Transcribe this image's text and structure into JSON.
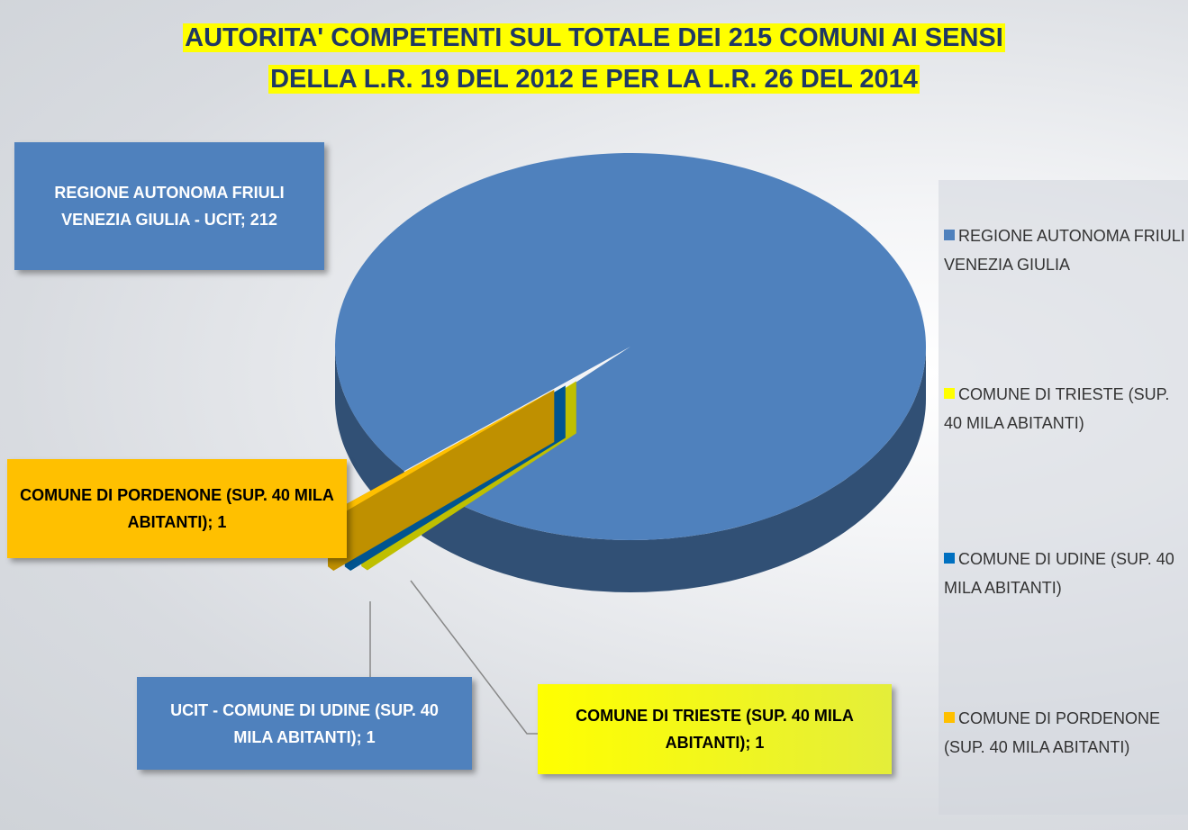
{
  "chart_data": {
    "type": "pie",
    "title": [
      "AUTORITA' COMPETENTI SUL TOTALE DEI 215 COMUNI AI SENSI",
      "DELLA L.R. 19 DEL 2012 E PER LA L.R. 26 DEL 2014"
    ],
    "categories": [
      "REGIONE AUTONOMA FRIULI VENEZIA GIULIA",
      "COMUNE DI TRIESTE (SUP. 40 MILA ABITANTI)",
      "COMUNE DI UDINE (SUP. 40 MILA ABITANTI)",
      "COMUNE DI PORDENONE (SUP. 40 MILA ABITANTI)"
    ],
    "values": [
      212,
      1,
      1,
      1
    ],
    "value_labels": [
      "REGIONE AUTONOMA FRIULI VENEZIA GIULIA - UCIT; 212",
      "COMUNE DI TRIESTE (SUP. 40 MILA ABITANTI); 1",
      "UCIT - COMUNE DI UDINE (SUP. 40 MILA ABITANTI); 1",
      "COMUNE DI PORDENONE (SUP. 40 MILA ABITANTI); 1"
    ],
    "colors": [
      "#4f81bd",
      "#ffff00",
      "#0070c0",
      "#ffc000"
    ],
    "legend": "right"
  }
}
